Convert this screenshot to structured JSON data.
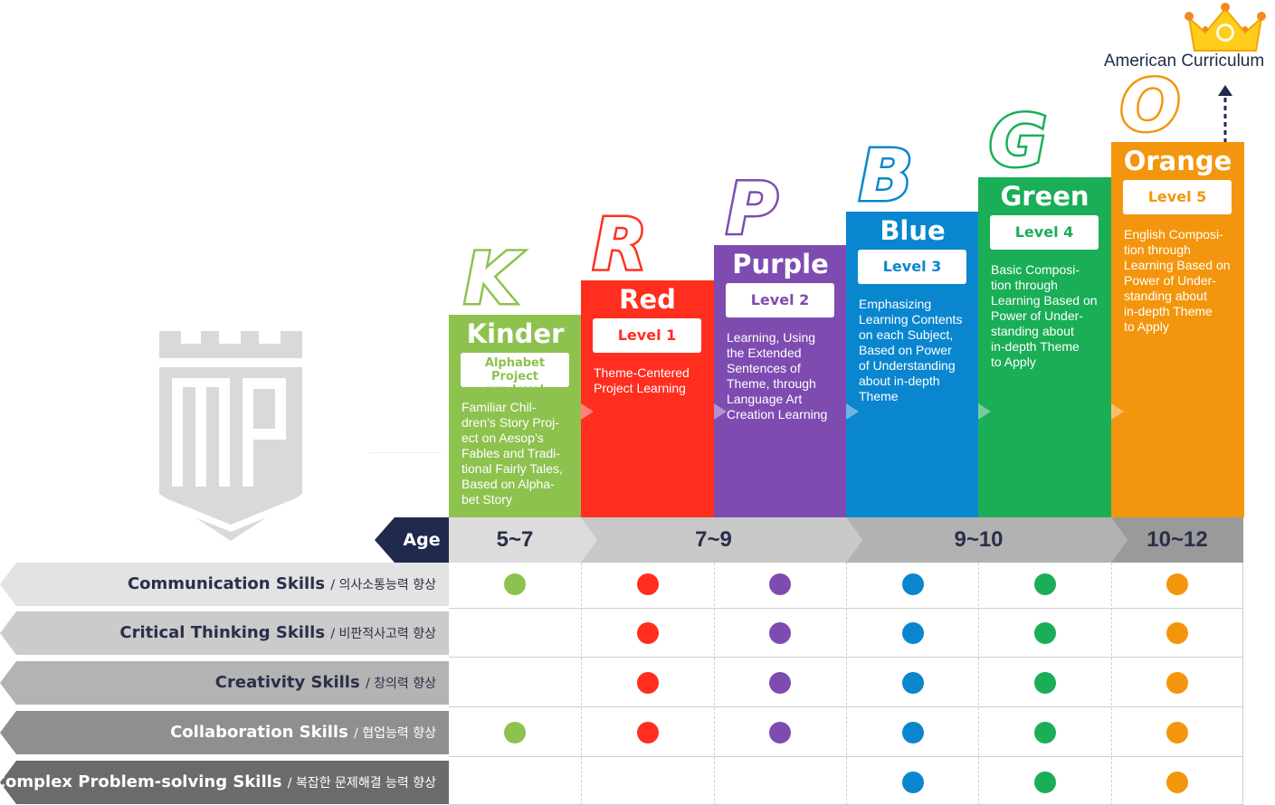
{
  "header": {
    "american_curriculum": "American Curriculum"
  },
  "columns": [
    {
      "key": "K",
      "name": "Kinder",
      "level": "Alphabet Project\npre level",
      "desc": "Familiar Chil-\ndren’s Story Proj-\nect on Aesop’s\nFables and Tradi-\ntional Fairly Tales,\nBased on Alpha-\nbet Story",
      "color": "#8dc24e"
    },
    {
      "key": "R",
      "name": "Red",
      "level": "Level 1",
      "desc": "Theme-Centered\nProject Learning",
      "color": "#ff2e1f"
    },
    {
      "key": "P",
      "name": "Purple",
      "level": "Level 2",
      "desc": "Learning, Using\nthe Extended\nSentences of\nTheme, through\nLanguage Art\nCreation Learning",
      "color": "#7e4cb0"
    },
    {
      "key": "B",
      "name": "Blue",
      "level": "Level 3",
      "desc": "Emphasizing\nLearning Contents\non each Subject,\nBased on Power\nof Understanding\nabout in-depth\nTheme",
      "color": "#0a86cf"
    },
    {
      "key": "G",
      "name": "Green",
      "level": "Level 4",
      "desc": "Basic Composi-\ntion through\nLearning Based on\nPower of Under-\nstanding about\nin-depth Theme\nto Apply",
      "color": "#1aae57"
    },
    {
      "key": "O",
      "name": "Orange",
      "level": "Level 5",
      "desc": "English Composi-\ntion through\nLearning Based on\nPower of Under-\nstanding about\nin-depth Theme\nto Apply",
      "color": "#f3960d"
    }
  ],
  "age": {
    "label": "Age",
    "ranges": [
      "5~7",
      "7~9",
      "9~10",
      "10~12"
    ]
  },
  "skills": [
    {
      "en": "Communication Skills",
      "ko": "/ 의사소통능력 향상",
      "marks": [
        true,
        true,
        true,
        true,
        true,
        true
      ]
    },
    {
      "en": "Critical Thinking Skills",
      "ko": "/ 비판적사고력 향상",
      "marks": [
        false,
        true,
        true,
        true,
        true,
        true
      ]
    },
    {
      "en": "Creativity Skills",
      "ko": "/ 창의력 향상",
      "marks": [
        false,
        true,
        true,
        true,
        true,
        true
      ]
    },
    {
      "en": "Collaboration Skills",
      "ko": "/ 협업능력 향상",
      "marks": [
        true,
        true,
        true,
        true,
        true,
        true
      ]
    },
    {
      "en": "Complex Problem-solving Skills",
      "ko": "/ 복잡한 문제해결 능력 향상",
      "marks": [
        false,
        false,
        false,
        true,
        true,
        true
      ]
    }
  ],
  "skill_band_colors": [
    "#e3e3e3",
    "#cbcbcb",
    "#b3b3b3",
    "#8f8f8f",
    "#6b6b6b"
  ],
  "skill_text_colors": [
    "#2a2f4a",
    "#2a2f4a",
    "#2a2f4a",
    "#ffffff",
    "#ffffff"
  ],
  "icons": {
    "logo": "mp-shield-logo",
    "crown": "crown-icon",
    "arrow": "dashed-up-arrow-icon"
  }
}
